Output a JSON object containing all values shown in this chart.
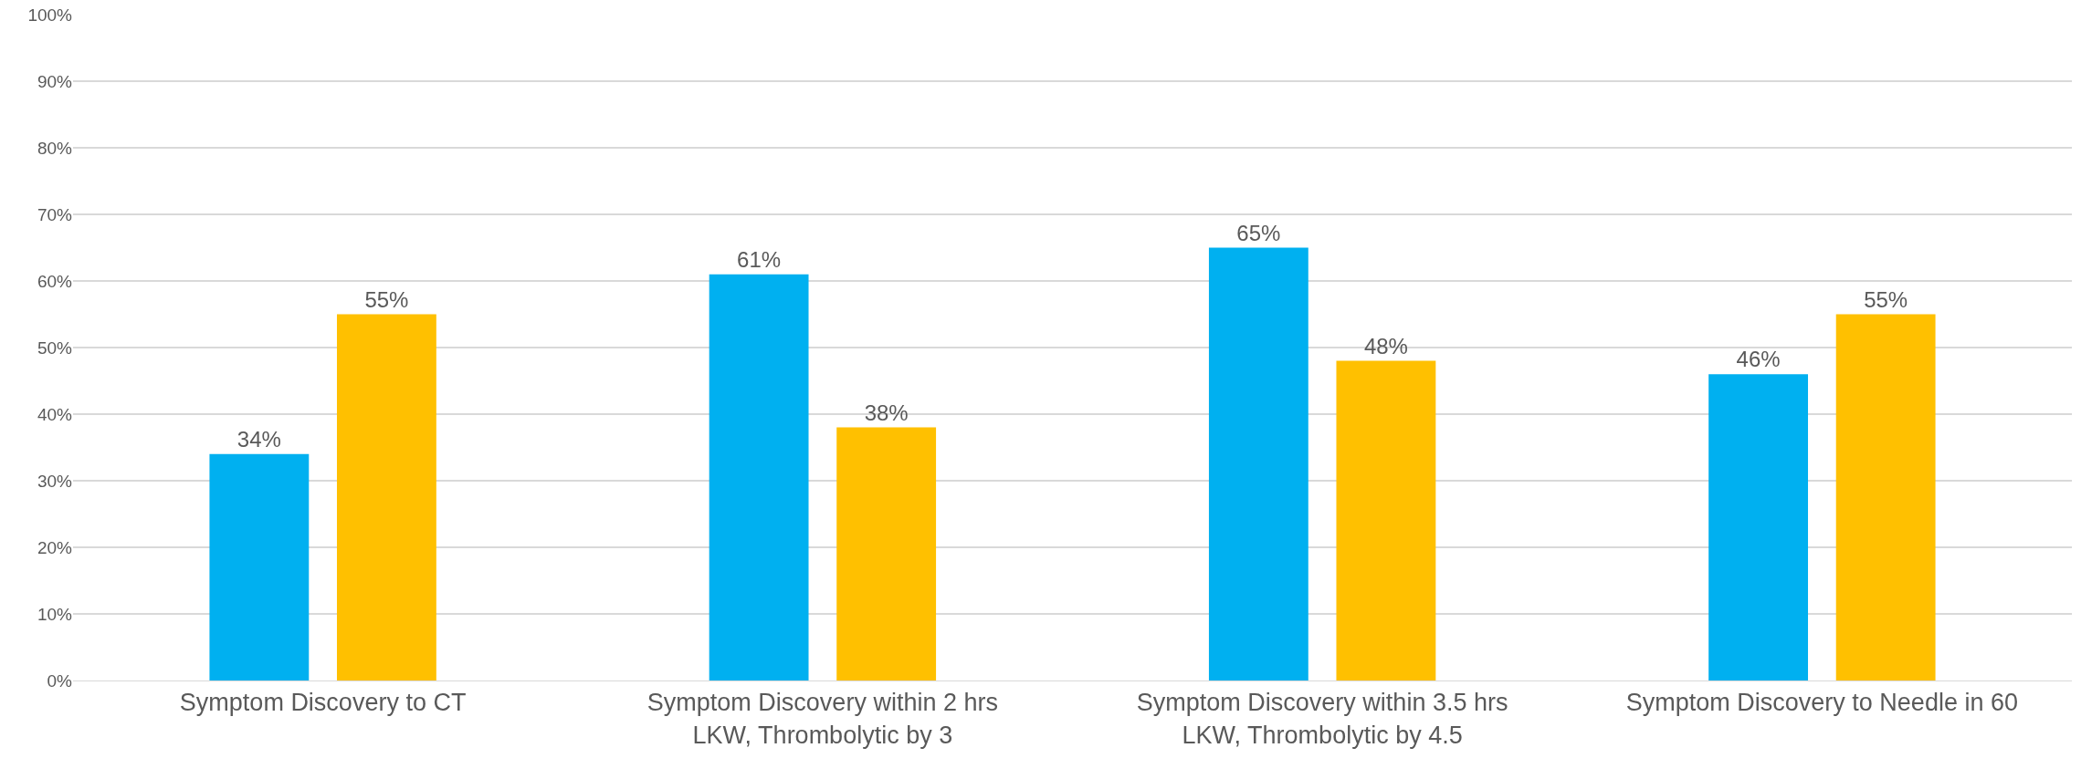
{
  "chart_data": {
    "type": "bar",
    "categories": [
      "Symptom Discovery to CT",
      "Symptom Discovery within 2 hrs LKW, Thrombolytic by 3",
      "Symptom Discovery within 3.5 hrs LKW, Thrombolytic by 4.5",
      "Symptom Discovery to Needle in 60"
    ],
    "series": [
      {
        "color": "#00b0f0",
        "values": [
          34,
          61,
          65,
          46
        ],
        "value_labels": [
          "34%",
          "61%",
          "65%",
          "46%"
        ]
      },
      {
        "color": "#ffc000",
        "values": [
          55,
          38,
          48,
          55
        ],
        "value_labels": [
          "55%",
          "38%",
          "48%",
          "55%"
        ]
      }
    ],
    "ylim": [
      0,
      100
    ],
    "yticks": [
      {
        "value": 0,
        "label": "0%"
      },
      {
        "value": 10,
        "label": "10%"
      },
      {
        "value": 20,
        "label": "20%"
      },
      {
        "value": 30,
        "label": "30%"
      },
      {
        "value": 40,
        "label": "40%"
      },
      {
        "value": 50,
        "label": "50%"
      },
      {
        "value": 60,
        "label": "60%"
      },
      {
        "value": 70,
        "label": "70%"
      },
      {
        "value": 80,
        "label": "80%"
      },
      {
        "value": 90,
        "label": "90%"
      },
      {
        "value": 100,
        "label": "100%"
      }
    ],
    "grid": "y"
  }
}
